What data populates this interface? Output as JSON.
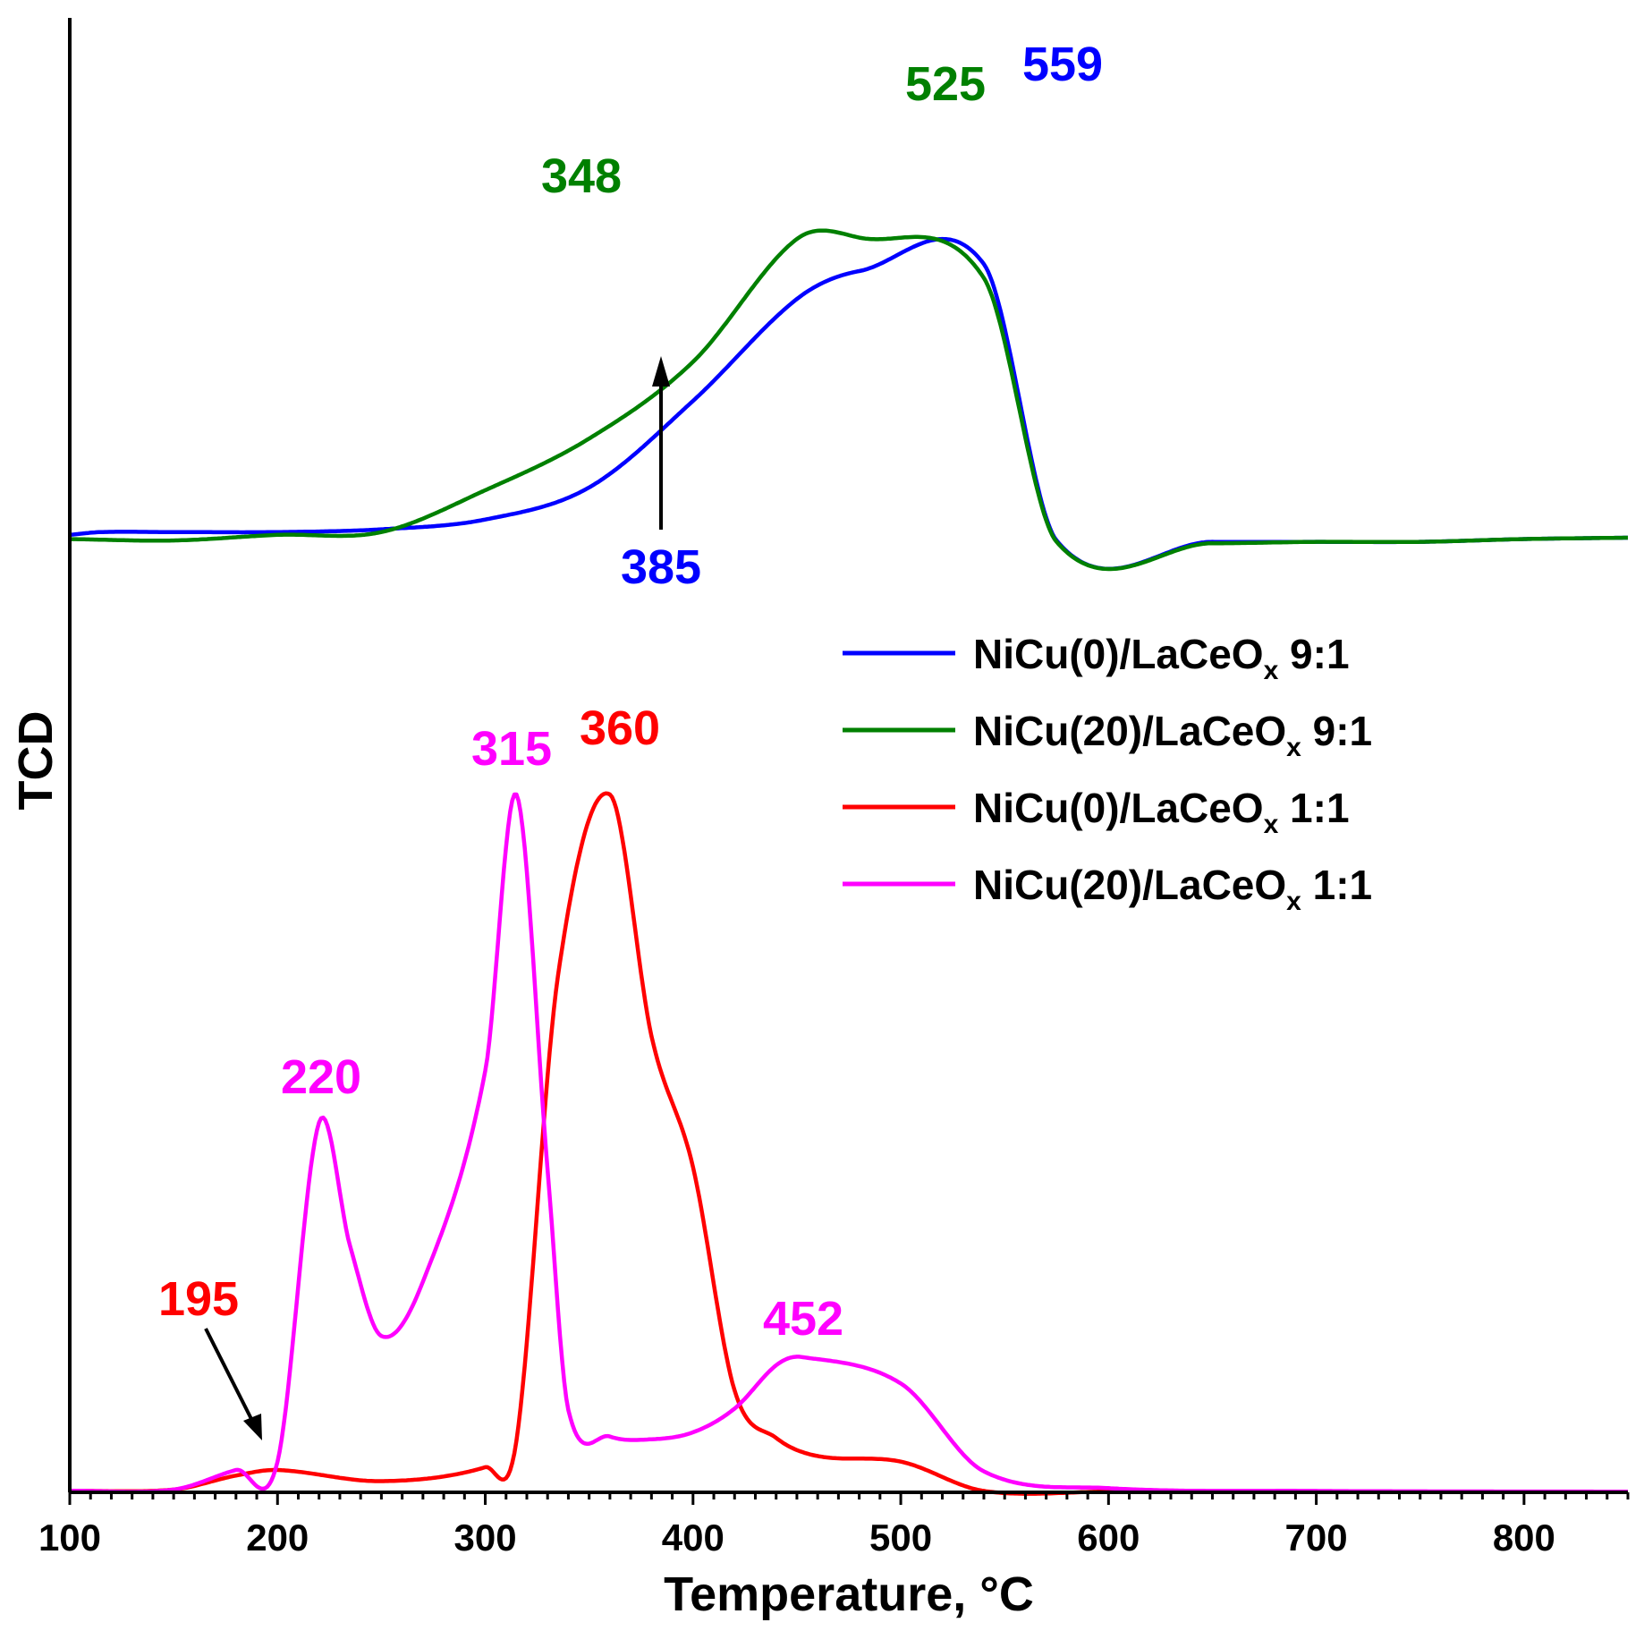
{
  "chart_data": {
    "type": "line",
    "xlabel": "Temperature, °C",
    "ylabel": "TCD",
    "xlim": [
      100,
      850
    ],
    "ylim": [
      0,
      100
    ],
    "x_ticks": [
      100,
      200,
      300,
      400,
      500,
      600,
      700,
      800
    ],
    "y_ticks_shown": false,
    "grid": false,
    "legend_position": "right-middle",
    "series": [
      {
        "name": "NiCu(0)/LaCeOx 9:1",
        "legend_main": "NiCu(0)/LaCeO",
        "legend_sub": "x",
        "legend_tail": " 9:1",
        "color": "#0000ff",
        "points": [
          [
            100,
            68.6
          ],
          [
            115,
            68.8
          ],
          [
            150,
            68.8
          ],
          [
            200,
            68.8
          ],
          [
            250,
            69.0
          ],
          [
            300,
            69.7
          ],
          [
            350,
            72.0
          ],
          [
            400,
            78.2
          ],
          [
            450,
            85.5
          ],
          [
            480,
            87.5
          ],
          [
            540,
            88.0
          ],
          [
            575,
            68.2
          ],
          [
            650,
            68.1
          ],
          [
            700,
            68.1
          ],
          [
            750,
            68.1
          ],
          [
            800,
            68.3
          ],
          [
            850,
            68.4
          ]
        ]
      },
      {
        "name": "NiCu(20)/LaCeOx 9:1",
        "legend_main": "NiCu(20)/LaCeO",
        "legend_sub": "x",
        "legend_tail": " 9:1",
        "color": "#008000",
        "points": [
          [
            100,
            68.3
          ],
          [
            150,
            68.2
          ],
          [
            200,
            68.6
          ],
          [
            250,
            68.8
          ],
          [
            300,
            71.8
          ],
          [
            350,
            75.5
          ],
          [
            400,
            81.0
          ],
          [
            450,
            89.8
          ],
          [
            480,
            89.9
          ],
          [
            540,
            87.0
          ],
          [
            575,
            68.1
          ],
          [
            650,
            68.0
          ],
          [
            700,
            68.1
          ],
          [
            750,
            68.1
          ],
          [
            800,
            68.3
          ],
          [
            850,
            68.4
          ]
        ]
      },
      {
        "name": "NiCu(0)/LaCeOx 1:1",
        "legend_main": "NiCu(0)/LaCeO",
        "legend_sub": "x",
        "legend_tail": " 1:1",
        "color": "#ff0000",
        "points": [
          [
            100,
            0.1
          ],
          [
            150,
            0.2
          ],
          [
            180,
            1.2
          ],
          [
            200,
            1.6
          ],
          [
            250,
            0.8
          ],
          [
            300,
            1.8
          ],
          [
            315,
            3.7
          ],
          [
            335,
            37.0
          ],
          [
            360,
            50.0
          ],
          [
            380,
            32.7
          ],
          [
            400,
            23.3
          ],
          [
            420,
            7.3
          ],
          [
            440,
            3.9
          ],
          [
            460,
            2.6
          ],
          [
            500,
            2.2
          ],
          [
            540,
            0.1
          ],
          [
            600,
            0.05
          ],
          [
            700,
            0.05
          ],
          [
            850,
            0.05
          ]
        ]
      },
      {
        "name": "NiCu(20)/LaCeOx 1:1",
        "legend_main": "NiCu(20)/LaCeO",
        "legend_sub": "x",
        "legend_tail": " 1:1",
        "color": "#ff00ff",
        "points": [
          [
            100,
            0.1
          ],
          [
            150,
            0.2
          ],
          [
            180,
            1.6
          ],
          [
            200,
            2.2
          ],
          [
            220,
            26.5
          ],
          [
            235,
            17.6
          ],
          [
            250,
            11.2
          ],
          [
            270,
            15.1
          ],
          [
            300,
            30.2
          ],
          [
            315,
            50.0
          ],
          [
            330,
            23.1
          ],
          [
            340,
            5.9
          ],
          [
            360,
            4.0
          ],
          [
            380,
            3.8
          ],
          [
            400,
            4.3
          ],
          [
            420,
            6.0
          ],
          [
            440,
            9.1
          ],
          [
            452,
            9.7
          ],
          [
            500,
            7.8
          ],
          [
            540,
            1.5
          ],
          [
            600,
            0.3
          ],
          [
            700,
            0.1
          ],
          [
            850,
            0.05
          ]
        ]
      }
    ],
    "annotations": [
      {
        "text": "559",
        "x": 559,
        "series_color": "#0000ff"
      },
      {
        "text": "525",
        "x": 525,
        "series_color": "#008000"
      },
      {
        "text": "348",
        "x": 348,
        "series_color": "#008000"
      },
      {
        "text": "385",
        "x": 385,
        "series_color": "#0000ff",
        "arrow": true
      },
      {
        "text": "360",
        "x": 360,
        "series_color": "#ff0000"
      },
      {
        "text": "315",
        "x": 315,
        "series_color": "#ff00ff"
      },
      {
        "text": "220",
        "x": 220,
        "series_color": "#ff00ff"
      },
      {
        "text": "195",
        "x": 195,
        "series_color": "#ff0000",
        "arrow": true
      },
      {
        "text": "452",
        "x": 452,
        "series_color": "#ff00ff"
      }
    ]
  }
}
